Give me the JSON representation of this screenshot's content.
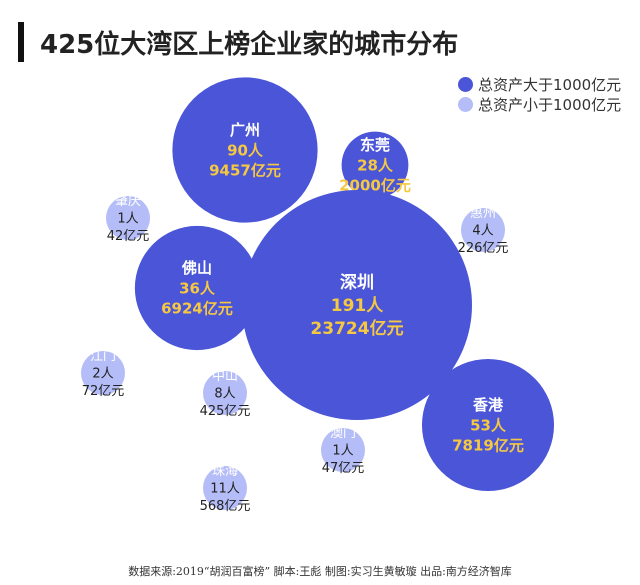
{
  "title": "425位大湾区上榜企业家的城市分布",
  "footer": "数据来源:2019“胡润百富榜”  脚本:王彪  制图:实习生黄敏璇  出品:南方经济智库",
  "colors": {
    "large": "#4a55d8",
    "small": "#b4bdf7",
    "highlight": "#f5c842",
    "dark_text": "#222222"
  },
  "chart_data": {
    "type": "bubble",
    "title": "425位大湾区上榜企业家的城市分布",
    "legend": {
      "position": "top-right",
      "entries": [
        {
          "name": "总资产大于1000亿元",
          "color": "#4a55d8"
        },
        {
          "name": "总资产小于1000亿元",
          "color": "#b4bdf7"
        }
      ]
    },
    "points": [
      {
        "city": "广州",
        "count": 90,
        "count_label": "90人",
        "assets": 9457,
        "assets_label": "9457亿元",
        "group": "large"
      },
      {
        "city": "东莞",
        "count": 28,
        "count_label": "28人",
        "assets": 2000,
        "assets_label": "2000亿元",
        "group": "large"
      },
      {
        "city": "肇庆",
        "count": 1,
        "count_label": "1人",
        "assets": 42,
        "assets_label": "42亿元",
        "group": "small"
      },
      {
        "city": "惠州",
        "count": 4,
        "count_label": "4人",
        "assets": 226,
        "assets_label": "226亿元",
        "group": "small"
      },
      {
        "city": "佛山",
        "count": 36,
        "count_label": "36人",
        "assets": 6924,
        "assets_label": "6924亿元",
        "group": "large"
      },
      {
        "city": "深圳",
        "count": 191,
        "count_label": "191人",
        "assets": 23724,
        "assets_label": "23724亿元",
        "group": "large"
      },
      {
        "city": "江门",
        "count": 2,
        "count_label": "2人",
        "assets": 72,
        "assets_label": "72亿元",
        "group": "small"
      },
      {
        "city": "中山",
        "count": 8,
        "count_label": "8人",
        "assets": 425,
        "assets_label": "425亿元",
        "group": "small"
      },
      {
        "city": "香港",
        "count": 53,
        "count_label": "53人",
        "assets": 7819,
        "assets_label": "7819亿元",
        "group": "large"
      },
      {
        "city": "澳门",
        "count": 1,
        "count_label": "1人",
        "assets": 47,
        "assets_label": "47亿元",
        "group": "small"
      },
      {
        "city": "珠海",
        "count": 11,
        "count_label": "11人",
        "assets": 568,
        "assets_label": "568亿元",
        "group": "small"
      }
    ]
  }
}
